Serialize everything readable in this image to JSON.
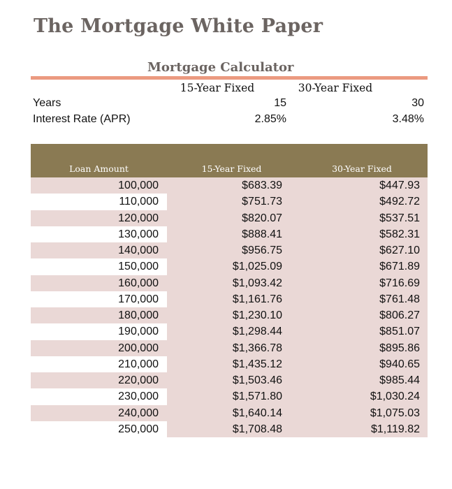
{
  "title": "The Mortgage White Paper",
  "calculator": {
    "title": "Mortgage Calculator",
    "col15": "15-Year Fixed",
    "col30": "30-Year Fixed",
    "years_label": "Years",
    "years_15": "15",
    "years_30": "30",
    "rate_label": "Interest Rate (APR)",
    "rate_15": "2.85%",
    "rate_30": "3.48%"
  },
  "table": {
    "headers": [
      "Loan Amount",
      "15-Year Fixed",
      "30-Year Fixed"
    ],
    "rows": [
      [
        "100,000",
        "$683.39",
        "$447.93"
      ],
      [
        "110,000",
        "$751.73",
        "$492.72"
      ],
      [
        "120,000",
        "$820.07",
        "$537.51"
      ],
      [
        "130,000",
        "$888.41",
        "$582.31"
      ],
      [
        "140,000",
        "$956.75",
        "$627.10"
      ],
      [
        "150,000",
        "$1,025.09",
        "$671.89"
      ],
      [
        "160,000",
        "$1,093.42",
        "$716.69"
      ],
      [
        "170,000",
        "$1,161.76",
        "$761.48"
      ],
      [
        "180,000",
        "$1,230.10",
        "$806.27"
      ],
      [
        "190,000",
        "$1,298.44",
        "$851.07"
      ],
      [
        "200,000",
        "$1,366.78",
        "$895.86"
      ],
      [
        "210,000",
        "$1,435.12",
        "$940.65"
      ],
      [
        "220,000",
        "$1,503.46",
        "$985.44"
      ],
      [
        "230,000",
        "$1,571.80",
        "$1,030.24"
      ],
      [
        "240,000",
        "$1,640.14",
        "$1,075.03"
      ],
      [
        "250,000",
        "$1,708.48",
        "$1,119.82"
      ]
    ]
  },
  "colors": {
    "title": "#6b6461",
    "rule": "#eb9a80",
    "header_bg": "#8a7a53",
    "row_shade": "#ead8d6"
  }
}
